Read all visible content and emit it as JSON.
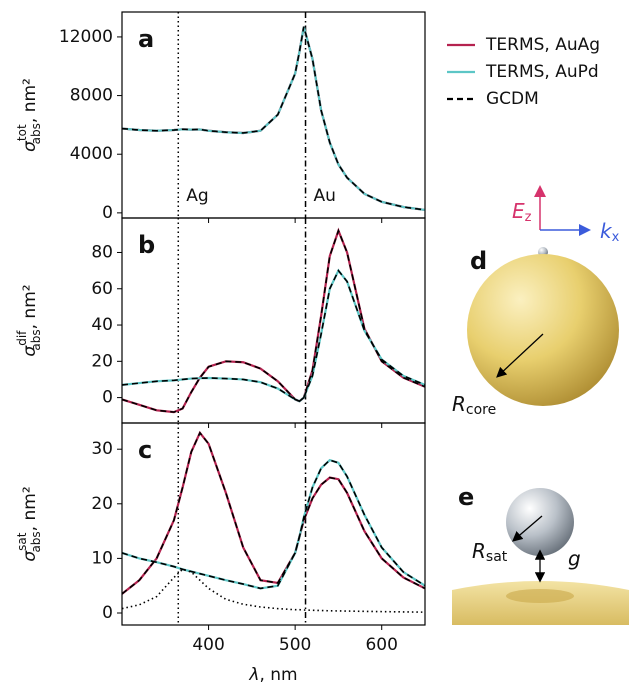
{
  "chart_data": [
    {
      "type": "line",
      "panel": "a",
      "ylabel": {
        "symbol": "σ",
        "sup": "tot",
        "sub": "abs",
        "unit": ", nm²"
      },
      "xlim": [
        300,
        650
      ],
      "ylim": [
        -350,
        13700
      ],
      "yticks": [
        0,
        4000,
        8000,
        12000
      ],
      "vlines": [
        {
          "x": 365,
          "style": "dotted",
          "label": "Ag"
        },
        {
          "x": 512,
          "style": "dashdot",
          "label": "Au"
        }
      ],
      "x": [
        300,
        320,
        340,
        360,
        370,
        380,
        390,
        400,
        420,
        440,
        460,
        480,
        500,
        505,
        510,
        520,
        530,
        540,
        550,
        560,
        580,
        600,
        625,
        650
      ],
      "series": [
        {
          "name": "TERMS, AuAg",
          "color": "#b5224f",
          "style": "solid",
          "values": [
            5750,
            5650,
            5600,
            5650,
            5700,
            5680,
            5690,
            5600,
            5500,
            5450,
            5600,
            6700,
            9500,
            11000,
            12700,
            10500,
            7000,
            4800,
            3300,
            2400,
            1300,
            750,
            400,
            200
          ]
        },
        {
          "name": "TERMS, AuPd",
          "color": "#5cc6c6",
          "style": "solid",
          "values": [
            5750,
            5650,
            5600,
            5650,
            5700,
            5680,
            5690,
            5600,
            5500,
            5450,
            5600,
            6700,
            9500,
            11000,
            12700,
            10500,
            7000,
            4800,
            3300,
            2400,
            1300,
            750,
            400,
            200
          ]
        },
        {
          "name": "GCDM",
          "color": "#000000",
          "style": "dashed",
          "values": [
            5750,
            5650,
            5600,
            5650,
            5700,
            5680,
            5690,
            5600,
            5500,
            5450,
            5600,
            6700,
            9500,
            11000,
            12700,
            10500,
            7000,
            4800,
            3300,
            2400,
            1300,
            750,
            400,
            200
          ]
        }
      ]
    },
    {
      "type": "line",
      "panel": "b",
      "ylabel": {
        "symbol": "σ",
        "sup": "dif",
        "sub": "abs",
        "unit": ", nm²"
      },
      "xlim": [
        300,
        650
      ],
      "ylim": [
        -14,
        99
      ],
      "yticks": [
        0,
        20,
        40,
        60,
        80
      ],
      "vlines": [
        {
          "x": 365,
          "style": "dotted"
        },
        {
          "x": 512,
          "style": "dashdot"
        }
      ],
      "x": [
        300,
        320,
        340,
        360,
        370,
        380,
        390,
        400,
        420,
        440,
        460,
        480,
        500,
        505,
        510,
        520,
        530,
        540,
        550,
        560,
        580,
        600,
        625,
        650
      ],
      "series": [
        {
          "color": "#b5224f",
          "style": "solid",
          "values": [
            -1,
            -4,
            -7,
            -8,
            -6,
            3,
            11,
            17,
            20,
            19.5,
            16,
            9,
            -1,
            -2,
            0,
            15,
            45,
            78,
            92,
            80,
            38,
            20,
            11,
            6
          ]
        },
        {
          "color": "#5cc6c6",
          "style": "solid",
          "values": [
            7,
            8,
            9,
            9.5,
            10,
            10.5,
            10.7,
            10.8,
            10.5,
            10,
            8.5,
            5,
            -1,
            -2,
            0,
            12,
            35,
            60,
            70,
            64,
            37,
            21,
            12,
            7
          ]
        },
        {
          "color": "#000000",
          "style": "dashed",
          "values": [
            -1,
            -4,
            -7,
            -8,
            -6,
            3,
            11,
            17,
            20,
            19.5,
            16,
            9,
            -1,
            -2,
            0,
            15,
            45,
            78,
            92,
            80,
            38,
            20,
            11,
            6
          ]
        },
        {
          "color": "#000000",
          "style": "dashed",
          "values": [
            7,
            8,
            9,
            9.5,
            10,
            10.5,
            10.7,
            10.8,
            10.5,
            10,
            8.5,
            5,
            -1,
            -2,
            0,
            12,
            35,
            60,
            70,
            64,
            37,
            21,
            12,
            7
          ]
        }
      ]
    },
    {
      "type": "line",
      "panel": "c",
      "ylabel": {
        "symbol": "σ",
        "sup": "sat",
        "sub": "abs",
        "unit": ", nm²"
      },
      "xlabel": {
        "symbol": "λ",
        "unit": ", nm"
      },
      "xlim": [
        300,
        650
      ],
      "xticks": [
        400,
        500,
        600
      ],
      "ylim": [
        -2.2,
        34.8
      ],
      "yticks": [
        0,
        10,
        20,
        30
      ],
      "vlines": [
        {
          "x": 365,
          "style": "dotted"
        },
        {
          "x": 512,
          "style": "dashdot"
        }
      ],
      "x": [
        300,
        320,
        340,
        360,
        370,
        380,
        390,
        400,
        420,
        440,
        460,
        480,
        500,
        505,
        510,
        520,
        530,
        540,
        550,
        560,
        580,
        600,
        625,
        650
      ],
      "series": [
        {
          "color": "#b5224f",
          "style": "solid",
          "values": [
            3.5,
            6,
            10,
            17,
            23,
            29.5,
            33,
            31,
            22,
            12,
            6,
            5.5,
            11,
            14,
            17,
            21,
            23.5,
            24.8,
            24.5,
            22,
            15,
            10,
            6.5,
            4.5
          ]
        },
        {
          "color": "#5cc6c6",
          "style": "solid",
          "values": [
            11,
            10,
            9.3,
            8.5,
            8,
            7.6,
            7.2,
            6.8,
            6,
            5.3,
            4.5,
            5,
            11,
            14,
            17.5,
            23,
            26.5,
            28,
            27.5,
            25,
            18,
            12,
            7.5,
            5
          ]
        },
        {
          "color": "#000000",
          "style": "dashed",
          "values": [
            3.5,
            6,
            10,
            17,
            23,
            29.5,
            33,
            31,
            22,
            12,
            6,
            5.5,
            11,
            14,
            17,
            21,
            23.5,
            24.8,
            24.5,
            22,
            15,
            10,
            6.5,
            4.5
          ]
        },
        {
          "color": "#000000",
          "style": "dashed",
          "values": [
            11,
            10,
            9.3,
            8.5,
            8,
            7.6,
            7.2,
            6.8,
            6,
            5.3,
            4.5,
            5,
            11,
            14,
            17.5,
            23,
            26.5,
            28,
            27.5,
            25,
            18,
            12,
            7.5,
            5
          ]
        },
        {
          "color": "#000000",
          "style": "dotted",
          "values": [
            0.8,
            1.5,
            3,
            6.5,
            8,
            7.5,
            6,
            4.5,
            2.5,
            1.6,
            1.1,
            0.8,
            0.6,
            0.6,
            0.55,
            0.5,
            0.45,
            0.4,
            0.38,
            0.35,
            0.3,
            0.25,
            0.2,
            0.15
          ]
        }
      ]
    }
  ],
  "illustration_d": {
    "panel": "d",
    "e_label": {
      "main": "E",
      "sub": "z"
    },
    "k_label": {
      "main": "k",
      "sub": "x"
    },
    "r_label": {
      "main": "R",
      "sub": "core"
    }
  },
  "illustration_e": {
    "panel": "e",
    "r_label": {
      "main": "R",
      "sub": "sat"
    },
    "gap_label": "g"
  }
}
